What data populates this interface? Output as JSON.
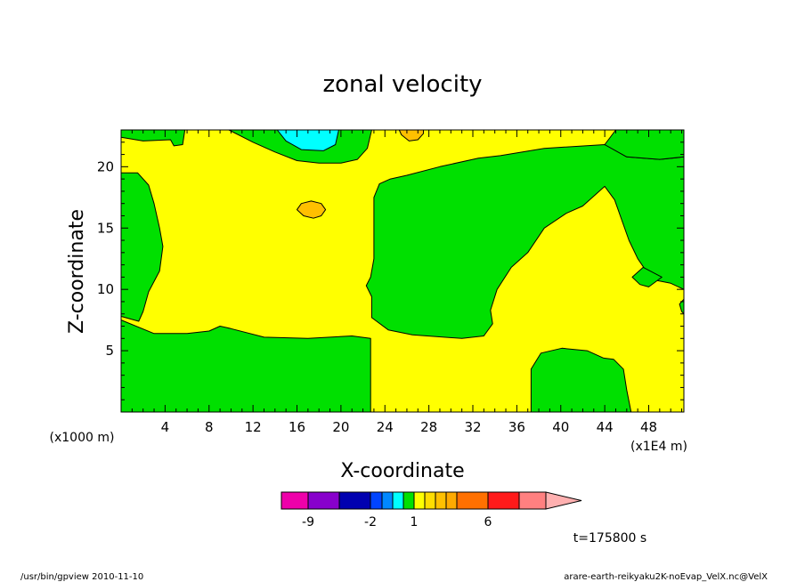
{
  "chart_data": {
    "type": "heatmap",
    "title": "zonal velocity",
    "xlabel": "X-coordinate",
    "ylabel": "Z-coordinate",
    "x_units": "(x1E4 m)",
    "y_units": "(x1000 m)",
    "x_ticks": [
      4,
      8,
      12,
      16,
      20,
      24,
      28,
      32,
      36,
      40,
      44,
      48
    ],
    "y_ticks": [
      5,
      10,
      15,
      20
    ],
    "xlim": [
      0,
      51.2
    ],
    "ylim": [
      0,
      23
    ],
    "background_level": "yellow",
    "regions": [
      {
        "color": "#00e000",
        "points": [
          [
            0,
            0
          ],
          [
            0,
            7.5
          ],
          [
            3,
            6.4
          ],
          [
            6,
            6.4
          ],
          [
            8,
            6.6
          ],
          [
            9,
            7.0
          ],
          [
            10,
            6.8
          ],
          [
            13,
            6.1
          ],
          [
            17,
            6.0
          ],
          [
            21,
            6.2
          ],
          [
            22.7,
            6.0
          ],
          [
            22.7,
            0
          ]
        ]
      },
      {
        "color": "#00e000",
        "points": [
          [
            0,
            19.5
          ],
          [
            1.5,
            19.5
          ],
          [
            2.5,
            18.5
          ],
          [
            3,
            17
          ],
          [
            3.5,
            15
          ],
          [
            3.8,
            13.5
          ],
          [
            3.5,
            11.5
          ],
          [
            2.5,
            9.8
          ],
          [
            2.0,
            8.2
          ],
          [
            1.6,
            7.4
          ],
          [
            0,
            7.8
          ]
        ]
      },
      {
        "color": "#00e000",
        "points": [
          [
            0,
            23
          ],
          [
            0,
            22.4
          ],
          [
            2,
            22.1
          ],
          [
            4.5,
            22.2
          ],
          [
            4.8,
            21.7
          ],
          [
            5.6,
            21.8
          ],
          [
            5.8,
            23
          ]
        ]
      },
      {
        "color": "#00e000",
        "points": [
          [
            9.8,
            23
          ],
          [
            12,
            22
          ],
          [
            14,
            21.2
          ],
          [
            16,
            20.5
          ],
          [
            18,
            20.3
          ],
          [
            20,
            20.3
          ],
          [
            21.5,
            20.6
          ],
          [
            22.4,
            21.5
          ],
          [
            22.8,
            23
          ]
        ]
      },
      {
        "color": "#00e000",
        "points": [
          [
            22.7,
            11
          ],
          [
            22.3,
            10.3
          ],
          [
            22.8,
            9.4
          ],
          [
            22.8,
            7.7
          ],
          [
            24.3,
            6.7
          ],
          [
            26.5,
            6.3
          ],
          [
            31,
            6.0
          ],
          [
            33,
            6.2
          ],
          [
            33.8,
            7.2
          ],
          [
            33.6,
            8.3
          ],
          [
            34.2,
            10
          ],
          [
            35.5,
            11.8
          ],
          [
            37,
            13
          ],
          [
            38.5,
            15
          ],
          [
            40.5,
            16.2
          ],
          [
            42,
            16.8
          ],
          [
            44,
            18.4
          ],
          [
            44.9,
            17.3
          ],
          [
            46.2,
            14
          ],
          [
            47,
            12.5
          ],
          [
            48.3,
            10.8
          ],
          [
            50,
            10.5
          ],
          [
            51.2,
            10
          ],
          [
            51.2,
            20.8
          ],
          [
            49,
            20.6
          ],
          [
            46,
            20.8
          ],
          [
            44,
            21.8
          ],
          [
            38.5,
            21.5
          ],
          [
            34.5,
            20.9
          ],
          [
            32.5,
            20.7
          ],
          [
            29,
            20.0
          ],
          [
            26,
            19.3
          ],
          [
            24.5,
            19.0
          ],
          [
            23.5,
            18.6
          ],
          [
            23.0,
            17.5
          ],
          [
            23.0,
            12.5
          ]
        ]
      },
      {
        "color": "#00e000",
        "points": [
          [
            51.2,
            23
          ],
          [
            51.2,
            20.8
          ],
          [
            49,
            20.6
          ],
          [
            46,
            20.8
          ],
          [
            44,
            21.8
          ],
          [
            45,
            23
          ]
        ]
      },
      {
        "color": "#00e000",
        "points": [
          [
            46.5,
            11
          ],
          [
            47.5,
            11.8
          ],
          [
            49.2,
            11.0
          ],
          [
            48.0,
            10.2
          ],
          [
            47.2,
            10.4
          ]
        ]
      },
      {
        "color": "#00e000",
        "points": [
          [
            51.2,
            9.2
          ],
          [
            50.8,
            8.8
          ],
          [
            51.0,
            8.2
          ],
          [
            51.2,
            8.0
          ]
        ]
      },
      {
        "color": "#00e000",
        "points": [
          [
            37.3,
            0
          ],
          [
            37.3,
            3.5
          ],
          [
            38.2,
            4.8
          ],
          [
            40.1,
            5.2
          ],
          [
            42.4,
            5.0
          ],
          [
            43.9,
            4.4
          ],
          [
            44.8,
            4.3
          ],
          [
            45.7,
            3.5
          ],
          [
            46.0,
            1.8
          ],
          [
            46.4,
            0
          ]
        ]
      },
      {
        "color": "#00ffff",
        "points": [
          [
            14.2,
            23
          ],
          [
            15,
            22.1
          ],
          [
            16.4,
            21.4
          ],
          [
            18.4,
            21.3
          ],
          [
            19.5,
            21.8
          ],
          [
            19.8,
            23
          ]
        ]
      },
      {
        "color": "#ffc000",
        "points": [
          [
            25.3,
            23
          ],
          [
            25.5,
            22.6
          ],
          [
            26.2,
            22.1
          ],
          [
            27.0,
            22.2
          ],
          [
            27.5,
            22.7
          ],
          [
            27.5,
            23
          ]
        ]
      },
      {
        "color": "#ffc000",
        "points": [
          [
            16,
            16.5
          ],
          [
            16.6,
            16.0
          ],
          [
            17.5,
            15.8
          ],
          [
            18.2,
            16.0
          ],
          [
            18.6,
            16.5
          ],
          [
            18.2,
            17.0
          ],
          [
            17.3,
            17.2
          ],
          [
            16.4,
            17.0
          ]
        ]
      }
    ],
    "colorbar": {
      "colors": [
        "#ee00aa",
        "#8800cc",
        "#0000b0",
        "#0044ff",
        "#0088ff",
        "#00ffff",
        "#00e000",
        "#ffff00",
        "#ffdd00",
        "#ffc000",
        "#ffaa00",
        "#ff7000",
        "#ff1a1a",
        "#ff8080",
        "#ffb0b0"
      ],
      "labels": [
        {
          "text": "-9",
          "boundary": 1
        },
        {
          "text": "-2",
          "boundary": 3
        },
        {
          "text": "1",
          "boundary": 7
        },
        {
          "text": "6",
          "boundary": 12
        }
      ]
    },
    "annotations": {
      "time": "t=175800 s",
      "footer_left": "/usr/bin/gpview   2010-11-10",
      "footer_right": "arare-earth-reikyaku2K-noEvap_VelX.nc@VelX"
    }
  }
}
